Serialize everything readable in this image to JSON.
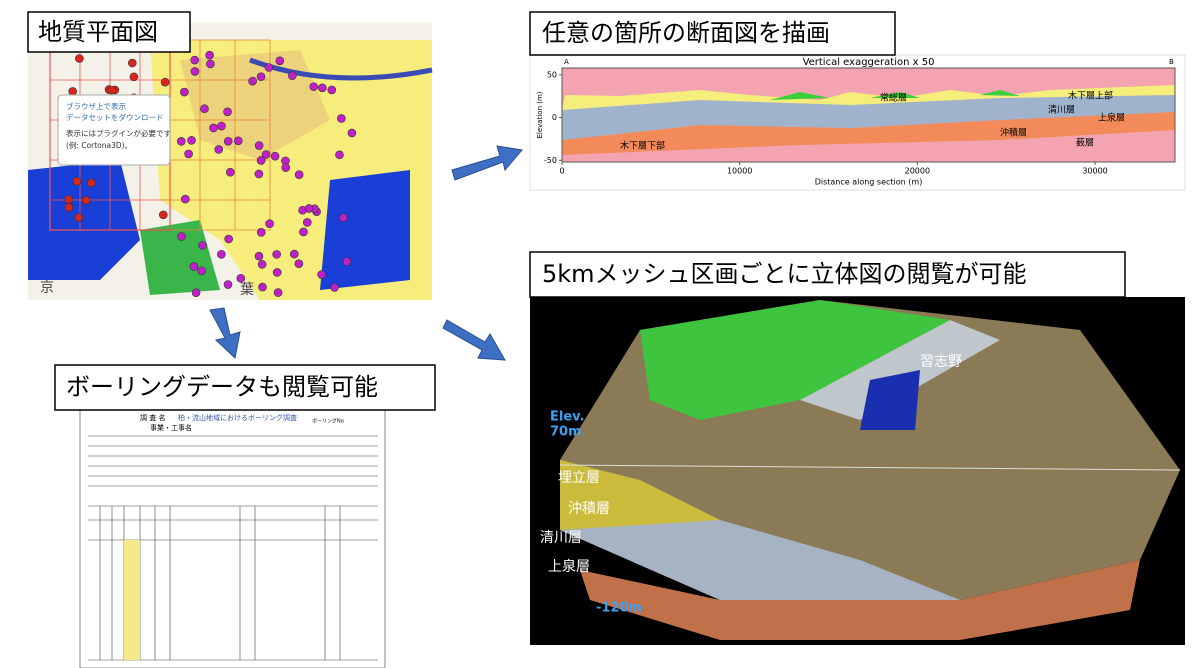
{
  "map_panel": {
    "title": "地質平面図",
    "popup_links": [
      "ブラウザ上で表示",
      "データセットをダウンロード"
    ],
    "popup_note": "表示にはプラグインが必要です",
    "popup_example": "(例: Cortona3D)。",
    "place_labels": [
      "京",
      "葉"
    ]
  },
  "section_panel": {
    "title": "任意の箇所の断面図を描画"
  },
  "chart_data": {
    "type": "section",
    "title": "Vertical exaggeration x 50",
    "corner_labels": [
      "A",
      "B"
    ],
    "xlabel": "Distance along section (m)",
    "ylabel": "Elevation (m)",
    "xlim": [
      0,
      34500
    ],
    "ylim": [
      -52,
      58
    ],
    "xticks": [
      0,
      10000,
      20000,
      30000
    ],
    "yticks": [
      -50,
      0,
      50
    ],
    "annotations": [
      "常総層",
      "木下層上部",
      "清川層",
      "上泉層",
      "沖積層",
      "薮層",
      "木下層下部"
    ]
  },
  "model_panel": {
    "title": "5kmメッシュ区画ごとに立体図の閲覧が可能",
    "place": "習志野",
    "elev_top": [
      "Elev.",
      "70m"
    ],
    "elev_bottom": "-120m",
    "layers": [
      "埋立層",
      "沖積層",
      "清川層",
      "上泉層"
    ]
  },
  "boring_panel": {
    "title": "ボーリングデータも閲覧可能",
    "doc_title": "調 査 名",
    "survey_name": "柏・流山地域におけるボーリング調査",
    "project_label": "事業・工事名",
    "boring_no": "ボーリングNo"
  }
}
